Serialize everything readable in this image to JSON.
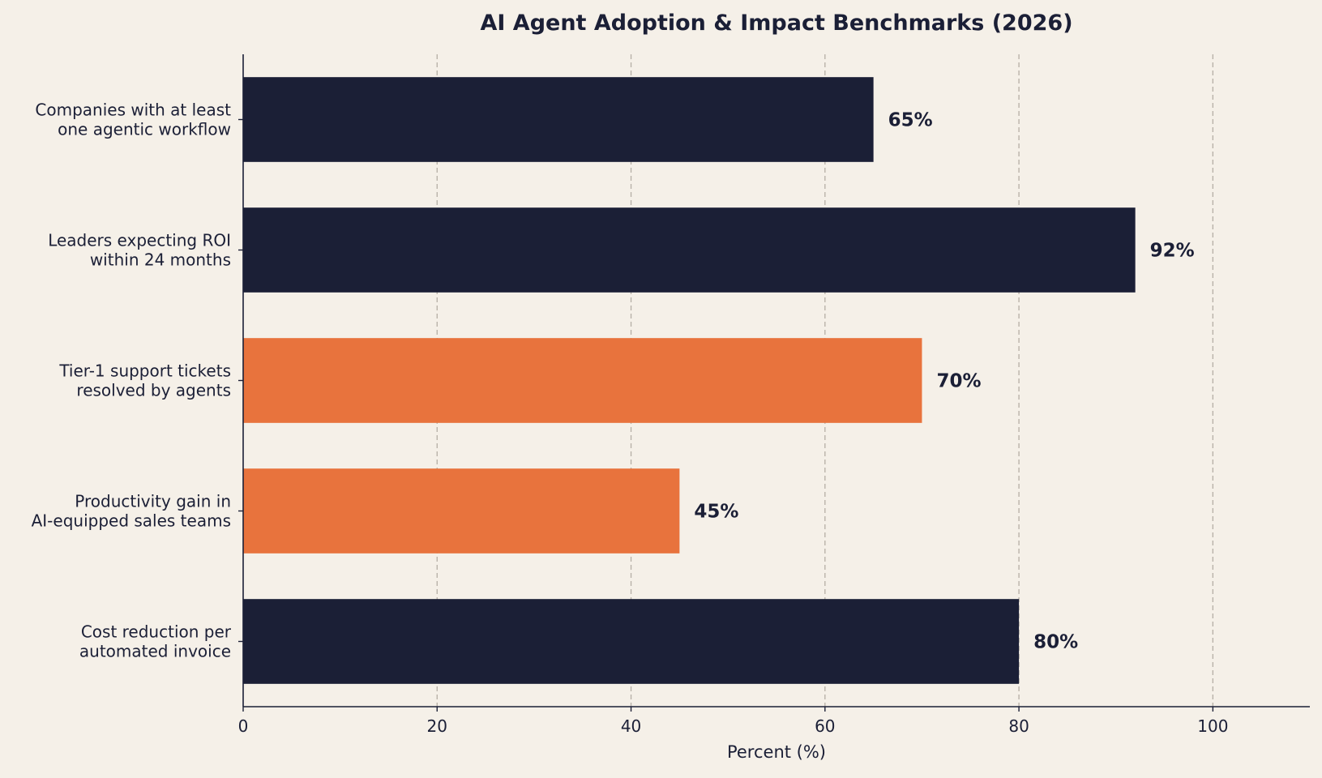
{
  "colors": {
    "background": "#f5f0e8",
    "navy": "#1b1f36",
    "orange": "#e8733d",
    "grid": "#b5aea5",
    "text": "#1b1f36"
  },
  "chart_data": {
    "type": "bar",
    "orientation": "horizontal",
    "title": "AI Agent Adoption & Impact Benchmarks (2026)",
    "xlabel": "Percent (%)",
    "ylabel": "",
    "xlim": [
      0,
      110
    ],
    "xticks": [
      0,
      20,
      40,
      60,
      80,
      100
    ],
    "grid": "vertical dashed",
    "categories": [
      [
        "Companies with at least",
        "one agentic workflow"
      ],
      [
        "Leaders expecting ROI",
        "within 24 months"
      ],
      [
        "Tier-1 support tickets",
        "resolved by agents"
      ],
      [
        "Productivity gain in",
        "AI-equipped sales teams"
      ],
      [
        "Cost reduction per",
        "automated invoice"
      ]
    ],
    "values": [
      65,
      92,
      70,
      45,
      80
    ],
    "value_labels": [
      "65%",
      "92%",
      "70%",
      "45%",
      "80%"
    ],
    "bar_colors": [
      "#1b1f36",
      "#1b1f36",
      "#e8733d",
      "#e8733d",
      "#1b1f36"
    ]
  }
}
